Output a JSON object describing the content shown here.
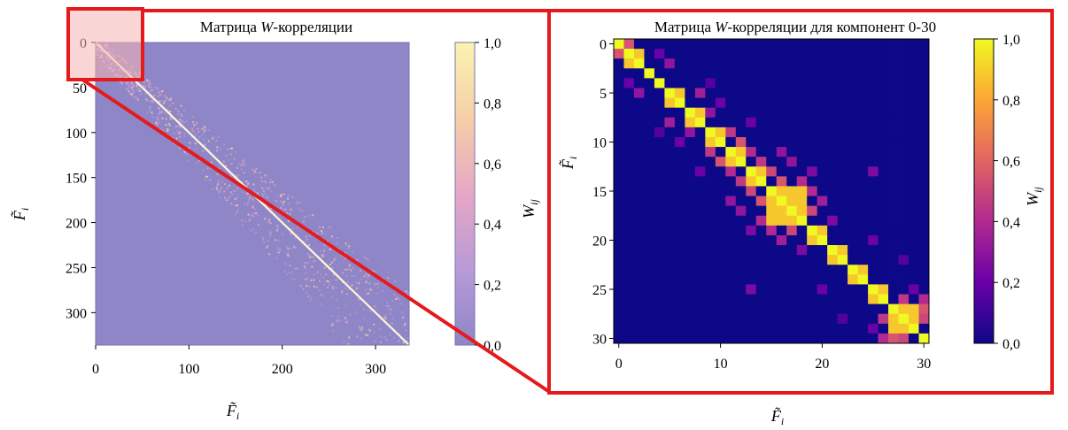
{
  "chart_data": [
    {
      "type": "heatmap",
      "title": "Матрица W-корреляции",
      "title_prefix": "Матрица ",
      "title_var": "W",
      "title_suffix": "-корреляции",
      "xlabel": "F̃i",
      "ylabel": "F̃i",
      "x_ticks": [
        "0",
        "100",
        "200",
        "300"
      ],
      "y_ticks": [
        "0",
        "50",
        "100",
        "150",
        "200",
        "250",
        "300"
      ],
      "xlim": [
        0,
        336
      ],
      "ylim": [
        0,
        336
      ],
      "colorbar": {
        "label": "Wij",
        "ticks": [
          "0,0",
          "0,2",
          "0,4",
          "0,6",
          "0,8",
          "1,0"
        ],
        "range": [
          0,
          1
        ],
        "colors": [
          "#8e86c6",
          "#b89ad8",
          "#e6a7c5",
          "#f5cfa8",
          "#fbf3b0"
        ]
      },
      "diagonal_value": 1.0,
      "background_value": 0.0,
      "highlight_region": {
        "x": [
          0,
          46
        ],
        "y": [
          0,
          46
        ]
      }
    },
    {
      "type": "heatmap",
      "title": "Матрица W-корреляции для компонент 0-30",
      "title_prefix": "Матрица ",
      "title_var": "W",
      "title_suffix": "-корреляции для компонент 0-30",
      "xlabel": "F̃i",
      "ylabel": "F̃i",
      "x_ticks": [
        "0",
        "10",
        "20",
        "30"
      ],
      "y_ticks": [
        "0",
        "5",
        "10",
        "15",
        "20",
        "25",
        "30"
      ],
      "xlim": [
        0,
        30
      ],
      "ylim": [
        0,
        30
      ],
      "colorbar": {
        "label": "Wij",
        "ticks": [
          "0,0",
          "0,2",
          "0,4",
          "0,6",
          "0,8",
          "1,0"
        ],
        "range": [
          0,
          1
        ],
        "colors": [
          "#0d0887",
          "#6a00a8",
          "#b12a90",
          "#e16462",
          "#fca636",
          "#f0f921"
        ]
      },
      "blocks": [
        {
          "start": 0,
          "end": 0
        },
        {
          "start": 1,
          "end": 2
        },
        {
          "start": 3,
          "end": 3
        },
        {
          "start": 5,
          "end": 6
        },
        {
          "start": 7,
          "end": 8
        },
        {
          "start": 9,
          "end": 10
        },
        {
          "start": 11,
          "end": 12
        },
        {
          "start": 13,
          "end": 14
        },
        {
          "start": 15,
          "end": 18
        },
        {
          "start": 19,
          "end": 20
        },
        {
          "start": 21,
          "end": 22
        },
        {
          "start": 23,
          "end": 24
        },
        {
          "start": 25,
          "end": 26
        },
        {
          "start": 27,
          "end": 29
        }
      ],
      "off_diagonal": [
        {
          "i": 0,
          "j": 1,
          "v": 0.55
        },
        {
          "i": 2,
          "j": 5,
          "v": 0.3
        },
        {
          "i": 5,
          "j": 8,
          "v": 0.35
        },
        {
          "i": 7,
          "j": 9,
          "v": 0.3
        },
        {
          "i": 9,
          "j": 11,
          "v": 0.45
        },
        {
          "i": 10,
          "j": 12,
          "v": 0.55
        },
        {
          "i": 12,
          "j": 14,
          "v": 0.45
        },
        {
          "i": 13,
          "j": 15,
          "v": 0.5
        },
        {
          "i": 14,
          "j": 16,
          "v": 0.55
        },
        {
          "i": 14,
          "j": 18,
          "v": 0.4
        },
        {
          "i": 15,
          "j": 19,
          "v": 0.4
        },
        {
          "i": 16,
          "j": 20,
          "v": 0.35
        },
        {
          "i": 17,
          "j": 19,
          "v": 0.5
        },
        {
          "i": 11,
          "j": 16,
          "v": 0.3
        },
        {
          "i": 12,
          "j": 17,
          "v": 0.3
        },
        {
          "i": 13,
          "j": 19,
          "v": 0.25
        },
        {
          "i": 8,
          "j": 13,
          "v": 0.2
        },
        {
          "i": 4,
          "j": 9,
          "v": 0.15
        },
        {
          "i": 20,
          "j": 25,
          "v": 0.2
        },
        {
          "i": 26,
          "j": 28,
          "v": 0.45
        },
        {
          "i": 26,
          "j": 30,
          "v": 0.4
        },
        {
          "i": 27,
          "j": 30,
          "v": 0.55
        },
        {
          "i": 28,
          "j": 30,
          "v": 0.5
        },
        {
          "i": 22,
          "j": 28,
          "v": 0.15
        },
        {
          "i": 25,
          "j": 29,
          "v": 0.2
        },
        {
          "i": 13,
          "j": 25,
          "v": 0.25
        },
        {
          "i": 18,
          "j": 21,
          "v": 0.25
        },
        {
          "i": 1,
          "j": 4,
          "v": 0.2
        },
        {
          "i": 6,
          "j": 10,
          "v": 0.2
        },
        {
          "i": 11,
          "j": 13,
          "v": 0.4
        }
      ]
    }
  ],
  "colors": {
    "highlight": "#e41a1c",
    "highlight_fill": "#f8b4b4"
  }
}
